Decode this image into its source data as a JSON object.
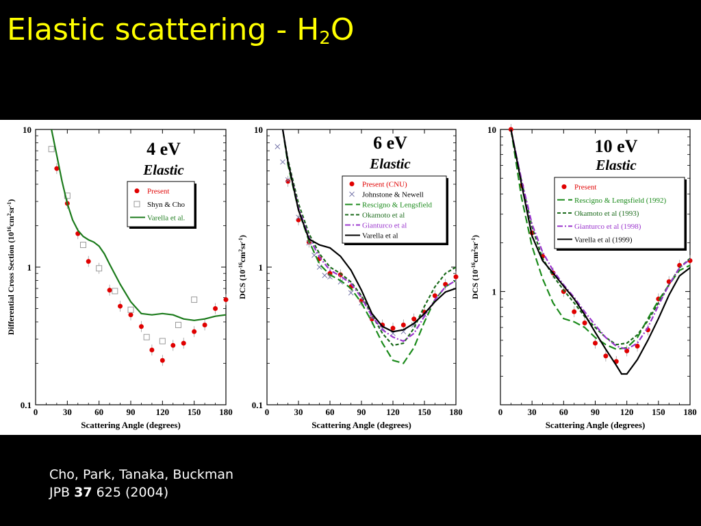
{
  "slide": {
    "title_main": "Elastic scattering - H",
    "title_subscript": "2",
    "title_tail": "O",
    "citation": {
      "authors": "Cho, Park, Tanaka, Buckman",
      "journal": "JPB",
      "volume": "37",
      "pages_year": "625 (2004)"
    },
    "colors": {
      "background": "#000000",
      "title": "#ffff00",
      "citation": "#ffffff"
    }
  },
  "chart_data": [
    {
      "type": "scatter",
      "title": "4 eV",
      "subtitle": "Elastic",
      "xlabel": "Scattering Angle (degrees)",
      "ylabel": "Differential Cross Section (10",
      "ylabel_sup1": "16",
      "ylabel_mid": "cm",
      "ylabel_sup2": "2",
      "ylabel_mid2": "sr",
      "ylabel_sup3": "-1",
      "ylabel_end": ")",
      "xlim": [
        0,
        180
      ],
      "ylim": [
        0.1,
        10
      ],
      "yscale": "log",
      "xticks": [
        "0",
        "30",
        "60",
        "90",
        "120",
        "150",
        "180"
      ],
      "yticks": [
        "0.1",
        "1",
        "10"
      ],
      "legend_position": "top-right",
      "series": [
        {
          "name": "Present",
          "kind": "points",
          "marker": "filled-circle",
          "color": "#e00000",
          "x": [
            20,
            30,
            40,
            50,
            60,
            70,
            80,
            90,
            100,
            110,
            120,
            130,
            140,
            150,
            160,
            170,
            180
          ],
          "y": [
            5.2,
            2.9,
            1.75,
            1.1,
            0.98,
            0.68,
            0.52,
            0.45,
            0.37,
            0.25,
            0.21,
            0.27,
            0.28,
            0.34,
            0.38,
            0.5,
            0.58
          ]
        },
        {
          "name": "Shyn & Cho",
          "kind": "points",
          "marker": "open-square",
          "color": "#999999",
          "x": [
            15,
            30,
            45,
            60,
            75,
            90,
            105,
            120,
            135,
            150
          ],
          "y": [
            7.2,
            3.3,
            1.45,
            0.98,
            0.67,
            0.49,
            0.31,
            0.29,
            0.38,
            0.58
          ]
        },
        {
          "name": "Varella et al.",
          "kind": "line",
          "dash": "solid",
          "color": "#1a7a1a",
          "x": [
            15,
            20,
            25,
            30,
            35,
            40,
            45,
            50,
            55,
            60,
            65,
            70,
            80,
            90,
            100,
            110,
            120,
            130,
            140,
            150,
            160,
            170,
            180
          ],
          "y": [
            10,
            6.5,
            4.2,
            2.9,
            2.2,
            1.85,
            1.67,
            1.58,
            1.52,
            1.42,
            1.25,
            1.05,
            0.75,
            0.56,
            0.46,
            0.45,
            0.46,
            0.45,
            0.42,
            0.41,
            0.42,
            0.44,
            0.45
          ]
        }
      ]
    },
    {
      "type": "scatter",
      "title": "6 eV",
      "subtitle": "Elastic",
      "xlabel": "Scattering Angle (degrees)",
      "ylabel": "DCS (10",
      "ylabel_sup1": "-16",
      "ylabel_mid": "cm",
      "ylabel_sup2": "2",
      "ylabel_mid2": "sr",
      "ylabel_sup3": "-1",
      "ylabel_end": ")",
      "xlim": [
        0,
        180
      ],
      "ylim": [
        0.1,
        10
      ],
      "yscale": "log",
      "xticks": [
        "0",
        "30",
        "60",
        "90",
        "120",
        "150",
        "180"
      ],
      "yticks": [
        "0.1",
        "1",
        "10"
      ],
      "legend_position": "top-right",
      "series": [
        {
          "name": "Present (CNU)",
          "kind": "points",
          "marker": "filled-circle",
          "color": "#e00000",
          "x": [
            20,
            30,
            40,
            50,
            60,
            70,
            80,
            90,
            100,
            110,
            120,
            130,
            140,
            150,
            160,
            170,
            180
          ],
          "y": [
            4.2,
            2.2,
            1.52,
            1.15,
            0.9,
            0.88,
            0.72,
            0.57,
            0.42,
            0.38,
            0.36,
            0.38,
            0.42,
            0.47,
            0.62,
            0.75,
            0.85
          ]
        },
        {
          "name": "Johnstone & Newell",
          "kind": "points",
          "marker": "cross",
          "color": "#7777aa",
          "x": [
            10,
            15,
            20,
            30,
            40,
            45,
            50,
            55,
            60,
            70,
            80,
            90,
            100,
            110,
            120,
            130,
            140,
            150
          ],
          "y": [
            7.5,
            5.8,
            4.3,
            2.3,
            1.5,
            1.22,
            1.0,
            0.87,
            0.85,
            0.78,
            0.65,
            0.55,
            0.43,
            0.36,
            0.33,
            0.34,
            0.38,
            0.45
          ]
        },
        {
          "name": "Rescigno & Lengsfield",
          "kind": "line",
          "dash": "long-dash",
          "color": "#1a8a1a",
          "x": [
            15,
            20,
            30,
            40,
            50,
            60,
            70,
            80,
            90,
            100,
            110,
            120,
            130,
            140,
            150,
            160,
            170,
            180
          ],
          "y": [
            10,
            5.5,
            2.6,
            1.55,
            1.05,
            0.88,
            0.8,
            0.7,
            0.55,
            0.4,
            0.28,
            0.21,
            0.2,
            0.26,
            0.4,
            0.58,
            0.72,
            0.8
          ]
        },
        {
          "name": "Okamoto et al",
          "kind": "line",
          "dash": "dash",
          "color": "#1a6a1a",
          "x": [
            15,
            20,
            30,
            40,
            50,
            60,
            70,
            80,
            90,
            100,
            110,
            120,
            130,
            140,
            150,
            160,
            170,
            180
          ],
          "y": [
            10,
            6.0,
            2.9,
            1.75,
            1.25,
            1.0,
            0.9,
            0.78,
            0.62,
            0.45,
            0.33,
            0.27,
            0.28,
            0.36,
            0.52,
            0.72,
            0.9,
            1.0
          ]
        },
        {
          "name": "Gianturco et al",
          "kind": "line",
          "dash": "dash-dot",
          "color": "#9933cc",
          "x": [
            15,
            20,
            30,
            40,
            50,
            60,
            70,
            80,
            90,
            100,
            110,
            120,
            130,
            140,
            150,
            160,
            170,
            180
          ],
          "y": [
            10,
            5.8,
            2.7,
            1.65,
            1.18,
            0.95,
            0.86,
            0.76,
            0.6,
            0.44,
            0.35,
            0.31,
            0.29,
            0.33,
            0.44,
            0.58,
            0.72,
            0.8
          ]
        },
        {
          "name": "Varella et al",
          "kind": "line",
          "dash": "solid",
          "color": "#000000",
          "x": [
            15,
            20,
            30,
            40,
            50,
            60,
            70,
            80,
            90,
            100,
            110,
            120,
            130,
            140,
            150,
            160,
            170,
            180
          ],
          "y": [
            10,
            5.8,
            2.6,
            1.6,
            1.45,
            1.38,
            1.2,
            0.95,
            0.68,
            0.46,
            0.37,
            0.34,
            0.35,
            0.39,
            0.46,
            0.56,
            0.66,
            0.7
          ]
        }
      ]
    },
    {
      "type": "scatter",
      "title": "10 eV",
      "subtitle": "Elastic",
      "xlabel": "Scattering Angle (degrees)",
      "ylabel": "DCS (10",
      "ylabel_sup1": "-16",
      "ylabel_mid": "cm",
      "ylabel_sup2": "2",
      "ylabel_mid2": "sr",
      "ylabel_sup3": "-1",
      "ylabel_end": ")",
      "xlim": [
        0,
        180
      ],
      "ylim": [
        0.2,
        10
      ],
      "yscale": "log",
      "xticks": [
        "0",
        "30",
        "60",
        "90",
        "120",
        "150",
        "180"
      ],
      "yticks": [
        "1",
        "10"
      ],
      "legend_position": "top-right",
      "series": [
        {
          "name": "Present",
          "kind": "points",
          "marker": "filled-circle",
          "color": "#e00000",
          "x": [
            10,
            20,
            30,
            40,
            50,
            60,
            70,
            80,
            90,
            100,
            110,
            120,
            130,
            140,
            150,
            160,
            170,
            180
          ],
          "y": [
            10,
            4.5,
            2.3,
            1.65,
            1.3,
            1.0,
            0.75,
            0.64,
            0.48,
            0.4,
            0.37,
            0.43,
            0.46,
            0.58,
            0.9,
            1.15,
            1.45,
            1.55
          ]
        },
        {
          "name": "Rescigno & Lengsfield (1992)",
          "kind": "line",
          "dash": "long-dash",
          "color": "#1a8a1a",
          "x": [
            10,
            20,
            30,
            40,
            50,
            60,
            70,
            80,
            90,
            100,
            110,
            120,
            130,
            140,
            150,
            160,
            170,
            180
          ],
          "y": [
            10,
            3.8,
            1.9,
            1.2,
            0.85,
            0.68,
            0.65,
            0.6,
            0.52,
            0.47,
            0.44,
            0.45,
            0.52,
            0.68,
            0.88,
            1.1,
            1.35,
            1.45
          ]
        },
        {
          "name": "Okamoto et al (1993)",
          "kind": "line",
          "dash": "dash",
          "color": "#1a6a1a",
          "x": [
            10,
            20,
            30,
            40,
            50,
            60,
            70,
            80,
            90,
            100,
            110,
            120,
            130,
            140,
            150,
            160,
            170,
            180
          ],
          "y": [
            10,
            4.8,
            2.5,
            1.6,
            1.25,
            1.02,
            0.85,
            0.7,
            0.6,
            0.52,
            0.47,
            0.48,
            0.54,
            0.66,
            0.85,
            1.1,
            1.4,
            1.6
          ]
        },
        {
          "name": "Gianturco et al (1998)",
          "kind": "line",
          "dash": "dash-dot",
          "color": "#9933cc",
          "x": [
            10,
            20,
            30,
            40,
            50,
            60,
            70,
            80,
            90,
            100,
            110,
            120,
            130,
            140,
            150,
            160,
            170,
            180
          ],
          "y": [
            10,
            4.9,
            2.6,
            1.75,
            1.35,
            1.1,
            0.92,
            0.75,
            0.62,
            0.52,
            0.46,
            0.44,
            0.48,
            0.6,
            0.82,
            1.1,
            1.4,
            1.58
          ]
        },
        {
          "name": "Varella et al (1999)",
          "kind": "line",
          "dash": "solid",
          "color": "#000000",
          "x": [
            10,
            20,
            30,
            40,
            50,
            60,
            70,
            80,
            90,
            100,
            110,
            115,
            120,
            130,
            140,
            150,
            160,
            170,
            180
          ],
          "y": [
            10,
            4.6,
            2.2,
            1.55,
            1.3,
            1.08,
            0.9,
            0.72,
            0.56,
            0.44,
            0.35,
            0.31,
            0.31,
            0.38,
            0.5,
            0.68,
            0.95,
            1.25,
            1.4
          ]
        }
      ]
    }
  ]
}
